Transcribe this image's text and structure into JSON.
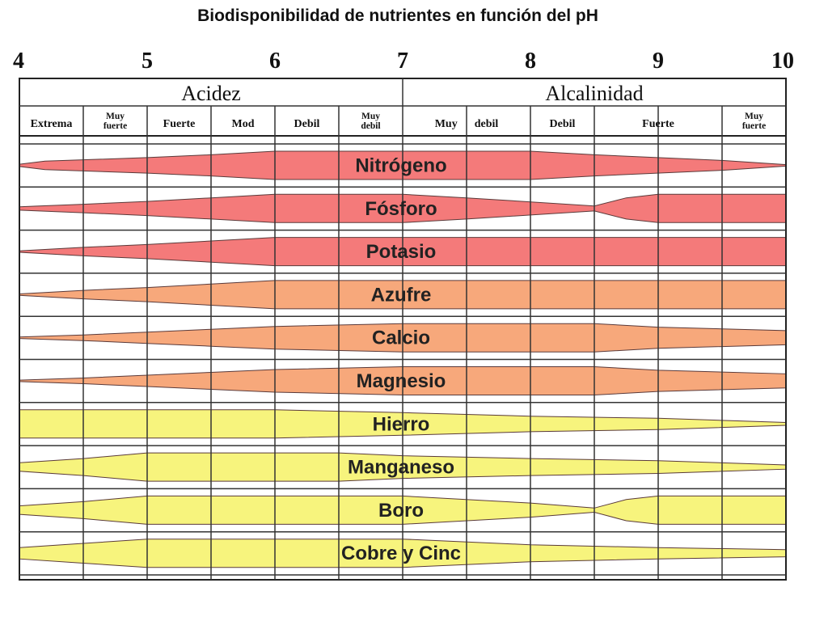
{
  "title": "Biodisponibilidad de nutrientes en función del pH",
  "ph_ticks": [
    {
      "value": 4,
      "label": "4"
    },
    {
      "value": 5,
      "label": "5"
    },
    {
      "value": 6,
      "label": "6"
    },
    {
      "value": 7,
      "label": "7"
    },
    {
      "value": 8,
      "label": "8"
    },
    {
      "value": 9,
      "label": "9"
    },
    {
      "value": 10,
      "label": "10"
    }
  ],
  "groups": [
    {
      "label": "Acidez",
      "from": 4,
      "to": 7
    },
    {
      "label": "Alcalinidad",
      "from": 7,
      "to": 10
    }
  ],
  "subgroups": [
    {
      "lines": [
        "Extrema"
      ],
      "from": 4.0,
      "to": 4.5
    },
    {
      "lines": [
        "Muy",
        "fuerte"
      ],
      "from": 4.5,
      "to": 5.0
    },
    {
      "lines": [
        "Fuerte"
      ],
      "from": 5.0,
      "to": 5.5
    },
    {
      "lines": [
        "Mod"
      ],
      "from": 5.5,
      "to": 6.0
    },
    {
      "lines": [
        "Debil"
      ],
      "from": 6.0,
      "to": 6.5
    },
    {
      "lines": [
        "Muy",
        "debil"
      ],
      "from": 6.5,
      "to": 7.0
    },
    {
      "lines": [
        "Muy      debil"
      ],
      "from": 7.0,
      "to": 8.0
    },
    {
      "lines": [
        "Debil"
      ],
      "from": 8.0,
      "to": 8.5
    },
    {
      "lines": [
        "Fuerte"
      ],
      "from": 8.5,
      "to": 9.5
    },
    {
      "lines": [
        "Muy",
        "fuerte"
      ],
      "from": 9.5,
      "to": 10.0
    }
  ],
  "legend_colors": {
    "macronutrients": "#f47a7a",
    "secondary": "#f7a87b",
    "micronutrients": "#f7f47d"
  },
  "chart_data": {
    "type": "area",
    "x_label": "",
    "xlim": [
      4,
      10
    ],
    "availability_scale": [
      0,
      1
    ],
    "nutrients": [
      {
        "name": "Nitrógeno",
        "color": "#f47a7a",
        "profile": [
          [
            4.0,
            0.08
          ],
          [
            4.2,
            0.3
          ],
          [
            5.0,
            0.55
          ],
          [
            5.5,
            0.75
          ],
          [
            6.0,
            1.0
          ],
          [
            8.0,
            1.0
          ],
          [
            8.5,
            0.75
          ],
          [
            9.5,
            0.35
          ],
          [
            10.0,
            0.05
          ]
        ]
      },
      {
        "name": "Fósforo",
        "color": "#f47a7a",
        "profile": [
          [
            4.0,
            0.12
          ],
          [
            4.5,
            0.3
          ],
          [
            5.0,
            0.5
          ],
          [
            5.5,
            0.75
          ],
          [
            6.0,
            1.0
          ],
          [
            7.0,
            1.0
          ],
          [
            7.5,
            0.75
          ],
          [
            8.5,
            0.18
          ],
          [
            8.75,
            0.75
          ],
          [
            9.0,
            1.0
          ],
          [
            10.0,
            1.0
          ]
        ]
      },
      {
        "name": "Potasio",
        "color": "#f47a7a",
        "profile": [
          [
            4.0,
            0.05
          ],
          [
            4.5,
            0.3
          ],
          [
            5.0,
            0.5
          ],
          [
            5.5,
            0.75
          ],
          [
            6.0,
            1.0
          ],
          [
            10.0,
            1.0
          ]
        ]
      },
      {
        "name": "Azufre",
        "color": "#f7a87b",
        "profile": [
          [
            4.0,
            0.05
          ],
          [
            4.5,
            0.3
          ],
          [
            5.0,
            0.5
          ],
          [
            5.5,
            0.75
          ],
          [
            6.0,
            1.0
          ],
          [
            10.0,
            1.0
          ]
        ]
      },
      {
        "name": "Calcio",
        "color": "#f7a87b",
        "profile": [
          [
            4.0,
            0.05
          ],
          [
            4.5,
            0.2
          ],
          [
            5.0,
            0.4
          ],
          [
            5.5,
            0.6
          ],
          [
            6.0,
            0.8
          ],
          [
            7.0,
            1.0
          ],
          [
            8.5,
            1.0
          ],
          [
            9.0,
            0.75
          ],
          [
            10.0,
            0.5
          ]
        ]
      },
      {
        "name": "Magnesio",
        "color": "#f7a87b",
        "profile": [
          [
            4.0,
            0.05
          ],
          [
            4.5,
            0.2
          ],
          [
            5.0,
            0.4
          ],
          [
            5.5,
            0.6
          ],
          [
            6.0,
            0.8
          ],
          [
            7.0,
            1.0
          ],
          [
            8.5,
            1.0
          ],
          [
            9.0,
            0.75
          ],
          [
            10.0,
            0.5
          ]
        ]
      },
      {
        "name": "Hierro",
        "color": "#f7f47d",
        "profile": [
          [
            4.0,
            1.0
          ],
          [
            6.0,
            1.0
          ],
          [
            7.0,
            0.8
          ],
          [
            8.0,
            0.55
          ],
          [
            9.0,
            0.4
          ],
          [
            10.0,
            0.1
          ]
        ]
      },
      {
        "name": "Manganeso",
        "color": "#f7f47d",
        "profile": [
          [
            4.0,
            0.3
          ],
          [
            4.5,
            0.6
          ],
          [
            5.0,
            1.0
          ],
          [
            6.5,
            1.0
          ],
          [
            7.0,
            0.8
          ],
          [
            8.0,
            0.6
          ],
          [
            9.0,
            0.45
          ],
          [
            10.0,
            0.15
          ]
        ]
      },
      {
        "name": "Boro",
        "color": "#f7f47d",
        "profile": [
          [
            4.0,
            0.3
          ],
          [
            4.5,
            0.6
          ],
          [
            5.0,
            1.0
          ],
          [
            7.0,
            1.0
          ],
          [
            8.0,
            0.5
          ],
          [
            8.5,
            0.15
          ],
          [
            8.75,
            0.75
          ],
          [
            9.0,
            1.0
          ],
          [
            10.0,
            1.0
          ]
        ]
      },
      {
        "name": "Cobre y Cinc",
        "color": "#f7f47d",
        "profile": [
          [
            4.0,
            0.4
          ],
          [
            4.5,
            0.7
          ],
          [
            5.0,
            1.0
          ],
          [
            7.0,
            1.0
          ],
          [
            8.0,
            0.6
          ],
          [
            9.0,
            0.4
          ],
          [
            10.0,
            0.25
          ]
        ]
      }
    ]
  }
}
